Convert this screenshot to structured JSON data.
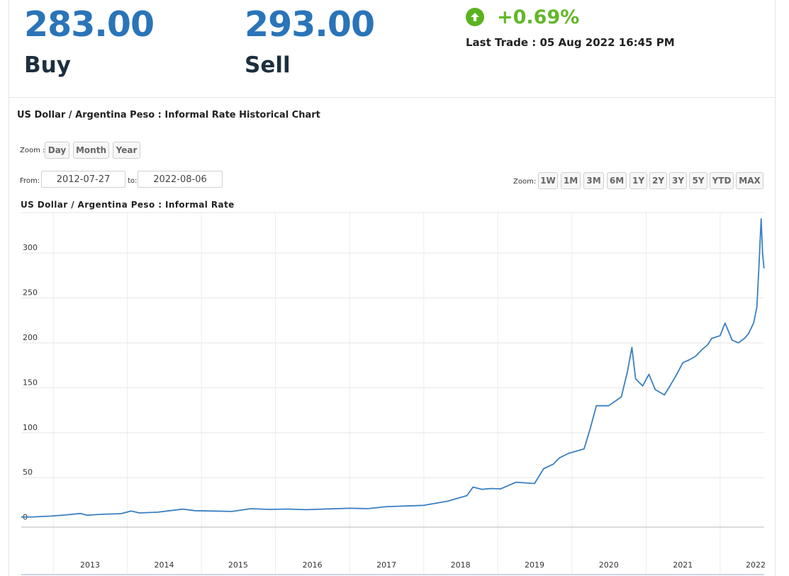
{
  "quote": {
    "buy_price": "283.00",
    "buy_label": "Buy",
    "sell_price": "293.00",
    "sell_label": "Sell",
    "change": "+0.69%",
    "change_icon": "arrow-up-circle-icon",
    "last_trade": "Last Trade : 05 Aug 2022 16:45 PM"
  },
  "chart_header": {
    "title": "US Dollar / Argentina Peso : Informal Rate Historical Chart",
    "zoom_label": "Zoom :",
    "zoom_periods": [
      "Day",
      "Month",
      "Year"
    ],
    "from_label": "From:",
    "from_value": "2012-07-27",
    "to_label": "to:",
    "to_value": "2022-08-06",
    "range_zoom_label": "Zoom:",
    "range_buttons": [
      "1W",
      "1M",
      "3M",
      "6M",
      "1Y",
      "2Y",
      "3Y",
      "5Y",
      "YTD",
      "MAX"
    ]
  },
  "colors": {
    "price": "#2a74b9",
    "change_up": "#62b72a",
    "line": "#3a7fc1"
  },
  "chart_data": {
    "type": "line",
    "title": "US Dollar / Argentina Peso : Informal Rate",
    "xlabel": "",
    "ylabel": "",
    "x_ticks": [
      "2013",
      "2014",
      "2015",
      "2016",
      "2017",
      "2018",
      "2019",
      "2020",
      "2021",
      "2022"
    ],
    "y_ticks": [
      "0",
      "50",
      "100",
      "150",
      "200",
      "250",
      "300"
    ],
    "xlim": [
      "2012-07-27",
      "2022-08-06"
    ],
    "ylim": [
      -5,
      345
    ],
    "grid": true,
    "series": [
      {
        "color": "#3a7fc1",
        "points": [
          [
            "2012-07-27",
            6.2
          ],
          [
            "2012-10-01",
            6.4
          ],
          [
            "2012-12-15",
            7.2
          ],
          [
            "2013-03-01",
            8.5
          ],
          [
            "2013-05-15",
            10.2
          ],
          [
            "2013-06-15",
            8.3
          ],
          [
            "2013-09-01",
            9.3
          ],
          [
            "2013-12-01",
            10.0
          ],
          [
            "2014-01-20",
            13.0
          ],
          [
            "2014-03-01",
            10.8
          ],
          [
            "2014-06-01",
            11.6
          ],
          [
            "2014-10-01",
            15.0
          ],
          [
            "2014-12-01",
            13.3
          ],
          [
            "2015-03-01",
            12.9
          ],
          [
            "2015-06-01",
            12.4
          ],
          [
            "2015-09-01",
            15.5
          ],
          [
            "2015-12-01",
            14.7
          ],
          [
            "2016-03-01",
            15.1
          ],
          [
            "2016-06-01",
            14.4
          ],
          [
            "2016-10-01",
            15.3
          ],
          [
            "2017-01-01",
            16.0
          ],
          [
            "2017-04-01",
            15.6
          ],
          [
            "2017-07-01",
            17.8
          ],
          [
            "2018-01-01",
            19.2
          ],
          [
            "2018-05-01",
            24.0
          ],
          [
            "2018-08-01",
            30.0
          ],
          [
            "2018-09-01",
            39.5
          ],
          [
            "2018-10-15",
            37.0
          ],
          [
            "2018-12-01",
            38.0
          ],
          [
            "2019-01-15",
            37.5
          ],
          [
            "2019-04-01",
            45.0
          ],
          [
            "2019-07-01",
            43.5
          ],
          [
            "2019-08-15",
            60.0
          ],
          [
            "2019-10-01",
            65.0
          ],
          [
            "2019-11-01",
            72.0
          ],
          [
            "2019-12-15",
            77.0
          ],
          [
            "2020-03-01",
            82.0
          ],
          [
            "2020-04-01",
            105.0
          ],
          [
            "2020-05-01",
            130.0
          ],
          [
            "2020-07-01",
            130.0
          ],
          [
            "2020-09-01",
            140.0
          ],
          [
            "2020-10-01",
            168.0
          ],
          [
            "2020-10-23",
            195.0
          ],
          [
            "2020-11-10",
            160.0
          ],
          [
            "2020-12-15",
            152.0
          ],
          [
            "2021-01-15",
            165.0
          ],
          [
            "2021-02-15",
            148.0
          ],
          [
            "2021-04-01",
            142.0
          ],
          [
            "2021-05-01",
            153.0
          ],
          [
            "2021-06-01",
            165.0
          ],
          [
            "2021-07-01",
            178.0
          ],
          [
            "2021-08-01",
            181.0
          ],
          [
            "2021-09-01",
            185.0
          ],
          [
            "2021-10-01",
            192.0
          ],
          [
            "2021-11-01",
            198.0
          ],
          [
            "2021-11-20",
            205.0
          ],
          [
            "2022-01-01",
            208.0
          ],
          [
            "2022-01-25",
            222.0
          ],
          [
            "2022-03-01",
            203.0
          ],
          [
            "2022-04-01",
            200.0
          ],
          [
            "2022-05-01",
            205.0
          ],
          [
            "2022-05-20",
            210.0
          ],
          [
            "2022-06-15",
            222.0
          ],
          [
            "2022-07-01",
            240.0
          ],
          [
            "2022-07-10",
            280.0
          ],
          [
            "2022-07-22",
            338.0
          ],
          [
            "2022-07-29",
            300.0
          ],
          [
            "2022-08-05",
            283.0
          ]
        ]
      }
    ]
  }
}
